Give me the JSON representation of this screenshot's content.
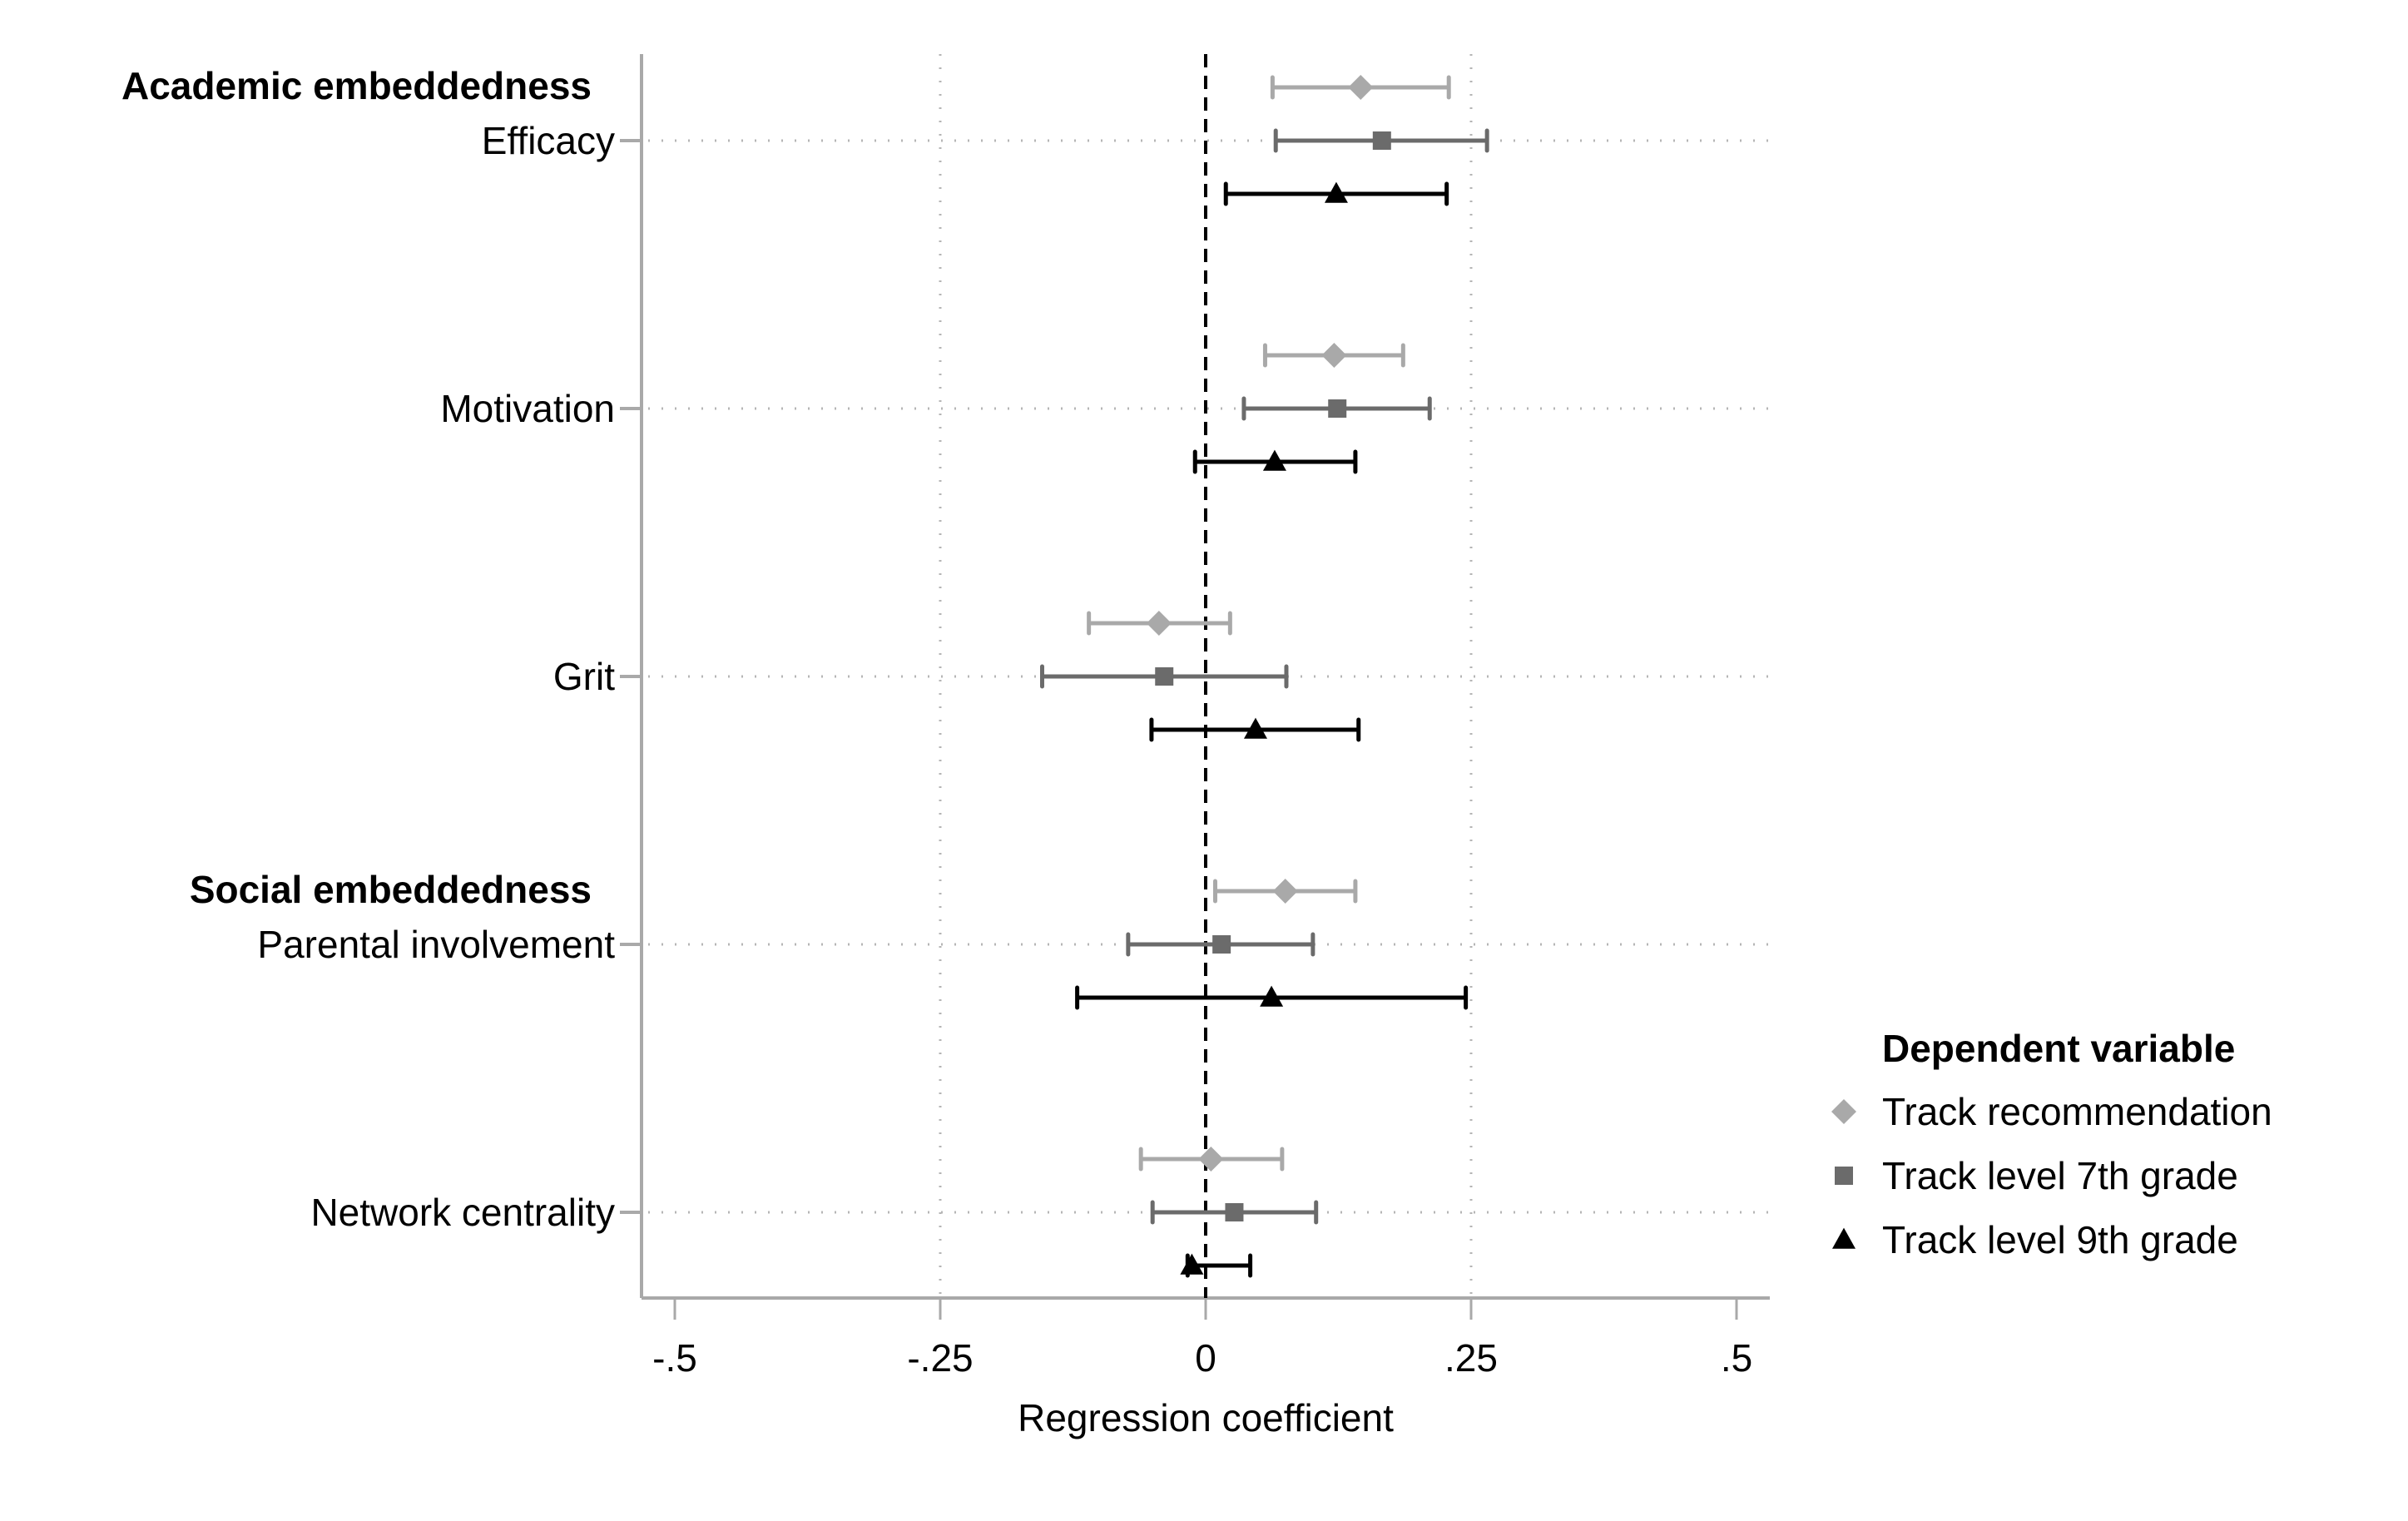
{
  "chart_data": {
    "type": "scatter",
    "subtype": "coefficient-plot",
    "title": "",
    "xlabel": "Regression coefficient",
    "ylabel": "",
    "xlim": [
      -0.53,
      0.53
    ],
    "xticks": [
      -0.5,
      -0.25,
      0,
      0.25,
      0.5
    ],
    "xtick_labels": [
      "-.5",
      "-.25",
      "0",
      ".25",
      ".5"
    ],
    "reference_line": {
      "x": 0,
      "style": "dashed",
      "color": "#000000"
    },
    "grid": true,
    "orientation": "horizontal",
    "groups": [
      {
        "label": "Academic embeddedness",
        "first_variable": "Efficacy"
      },
      {
        "label": "Social embeddedness",
        "first_variable": "Parental involvement"
      }
    ],
    "categories": [
      "Efficacy",
      "Motivation",
      "Grit",
      "Parental involvement",
      "Network centrality"
    ],
    "series": [
      {
        "name": "Track recommendation",
        "marker": "diamond",
        "color": "#a9a9a9",
        "values": [
          0.146,
          0.121,
          -0.044,
          0.075,
          0.005
        ],
        "ci_low": [
          0.063,
          0.056,
          -0.11,
          0.009,
          -0.061
        ],
        "ci_high": [
          0.229,
          0.186,
          0.023,
          0.141,
          0.072
        ]
      },
      {
        "name": "Track level 7th grade",
        "marker": "square",
        "color": "#6b6b6b",
        "values": [
          0.166,
          0.124,
          -0.039,
          0.015,
          0.027
        ],
        "ci_low": [
          0.066,
          0.036,
          -0.154,
          -0.073,
          -0.05
        ],
        "ci_high": [
          0.265,
          0.211,
          0.076,
          0.101,
          0.104
        ]
      },
      {
        "name": "Track level 9th grade",
        "marker": "triangle",
        "color": "#000000",
        "values": [
          0.123,
          0.065,
          0.047,
          0.062,
          -0.013
        ],
        "ci_low": [
          0.019,
          -0.01,
          -0.051,
          -0.121,
          -0.017
        ],
        "ci_high": [
          0.227,
          0.141,
          0.144,
          0.245,
          0.042
        ]
      }
    ],
    "legend": {
      "title": "Dependent variable",
      "position": "right-bottom",
      "entries": [
        "Track recommendation",
        "Track level 7th grade",
        "Track level 9th grade"
      ]
    }
  }
}
